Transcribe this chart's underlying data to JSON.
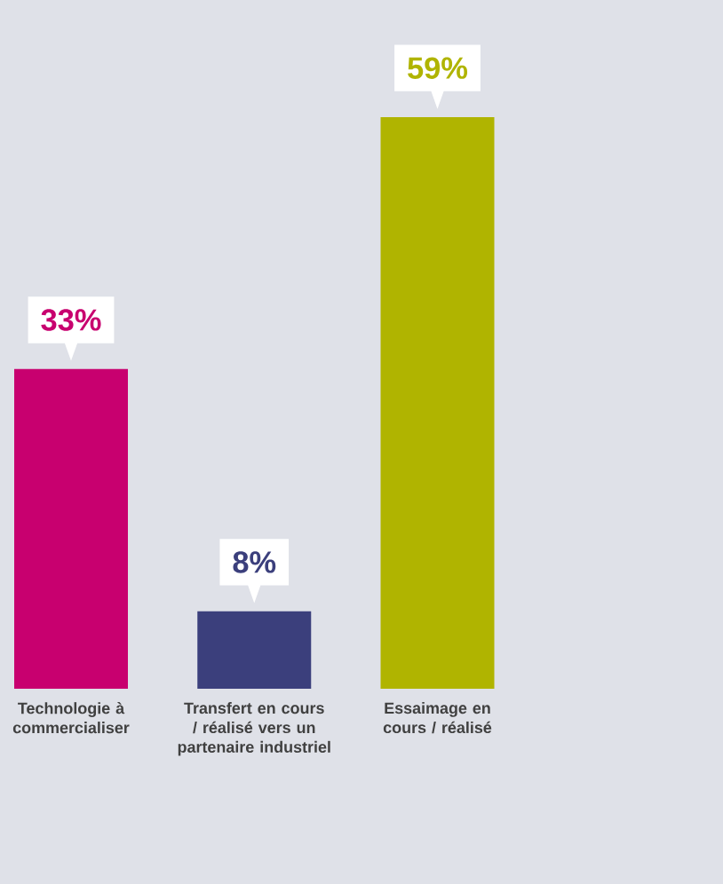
{
  "chart_data": {
    "type": "bar",
    "categories": [
      "Technologie à commercialiser",
      "Transfert en cours / réalisé vers un partenaire industriel",
      "Essaimage en cours / réalisé"
    ],
    "values": [
      33,
      8,
      59
    ],
    "colors": [
      "#c8006f",
      "#3b3f7c",
      "#b0b400"
    ],
    "value_labels": [
      "33%",
      "8%",
      "59%"
    ]
  }
}
